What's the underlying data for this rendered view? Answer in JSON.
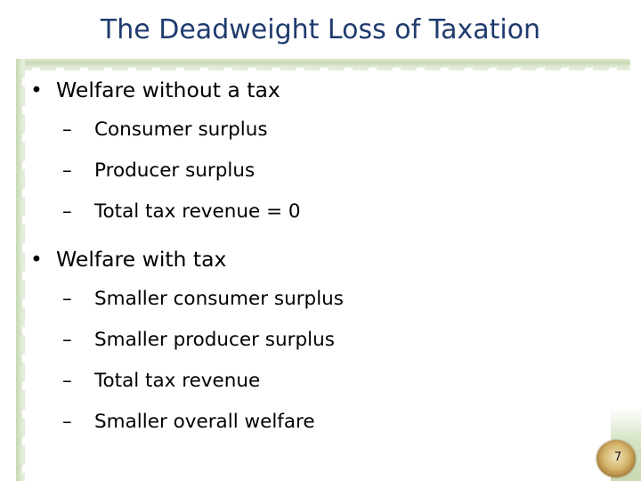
{
  "slide": {
    "title": "The Deadweight Loss of Taxation",
    "page_number": "7"
  },
  "bullets": [
    {
      "text": "Welfare without a tax",
      "sub": [
        "Consumer surplus",
        "Producer surplus",
        "Total tax revenue = 0"
      ]
    },
    {
      "text": "Welfare with tax",
      "sub": [
        "Smaller consumer surplus",
        "Smaller producer surplus",
        "Total tax revenue",
        "Smaller overall welfare"
      ]
    }
  ],
  "glyphs": {
    "bullet": "•",
    "dash": "–"
  },
  "colors": {
    "title": "#1f3b6e",
    "frame_green": "#c9dab6"
  }
}
